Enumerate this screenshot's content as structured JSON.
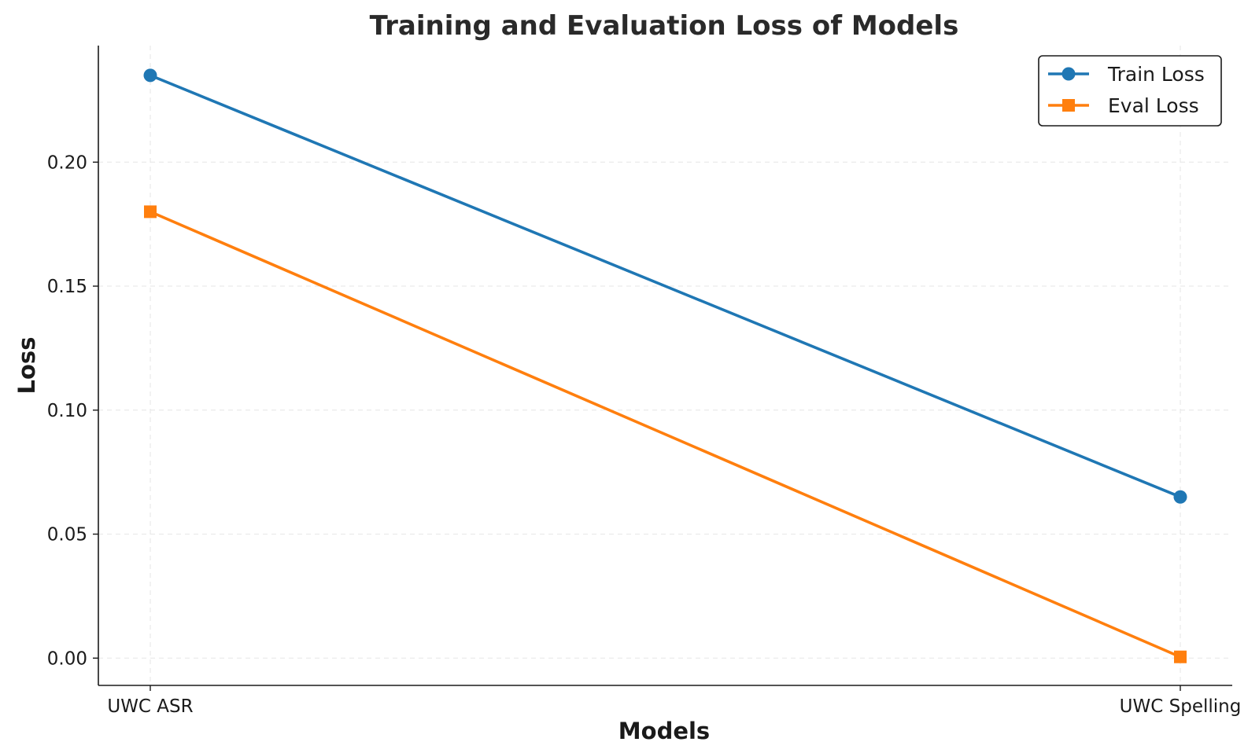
{
  "chart_data": {
    "type": "line",
    "title": "Training and Evaluation Loss of Models",
    "xlabel": "Models",
    "ylabel": "Loss",
    "categories": [
      "UWC ASR",
      "UWC Spelling"
    ],
    "ylim": [
      -0.011,
      0.247
    ],
    "yticks": [
      0.0,
      0.05,
      0.1,
      0.15,
      0.2
    ],
    "ytick_labels": [
      "0.00",
      "0.05",
      "0.10",
      "0.15",
      "0.20"
    ],
    "grid": true,
    "legend_position": "top-right",
    "series": [
      {
        "name": "Train Loss",
        "values": [
          0.235,
          0.065
        ],
        "color": "#1f77b4",
        "marker": "circle"
      },
      {
        "name": "Eval Loss",
        "values": [
          0.18,
          0.0005
        ],
        "color": "#ff7f0e",
        "marker": "square"
      }
    ]
  }
}
